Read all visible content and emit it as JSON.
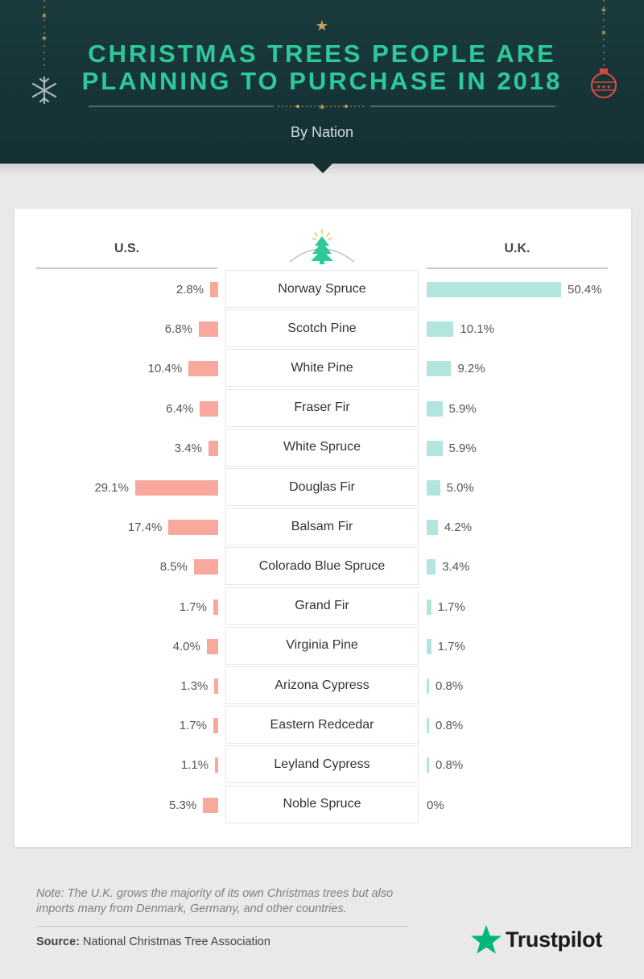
{
  "header": {
    "title_line1": "CHRISTMAS TREES PEOPLE ARE",
    "title_line2": "PLANNING TO PURCHASE IN 2018",
    "subtitle": "By Nation"
  },
  "columns": {
    "left": "U.S.",
    "right": "U.K."
  },
  "chart_data": {
    "type": "bar",
    "title": "CHRISTMAS TREES PEOPLE ARE PLANNING TO PURCHASE IN 2018",
    "subtitle": "By Nation",
    "unit": "%",
    "categories": [
      "Norway Spruce",
      "Scotch Pine",
      "White Pine",
      "Fraser Fir",
      "White Spruce",
      "Douglas Fir",
      "Balsam Fir",
      "Colorado Blue Spruce",
      "Grand Fir",
      "Virginia Pine",
      "Arizona Cypress",
      "Eastern Redcedar",
      "Leyland Cypress",
      "Noble Spruce"
    ],
    "series": [
      {
        "name": "U.S.",
        "color": "#f8a89c",
        "values": [
          2.8,
          6.8,
          10.4,
          6.4,
          3.4,
          29.1,
          17.4,
          8.5,
          1.7,
          4.0,
          1.3,
          1.7,
          1.1,
          5.3
        ],
        "labels": [
          "2.8%",
          "6.8%",
          "10.4%",
          "6.4%",
          "3.4%",
          "29.1%",
          "17.4%",
          "8.5%",
          "1.7%",
          "4.0%",
          "1.3%",
          "1.7%",
          "1.1%",
          "5.3%"
        ]
      },
      {
        "name": "U.K.",
        "color": "#b2e5de",
        "values": [
          50.4,
          10.1,
          9.2,
          5.9,
          5.9,
          5.0,
          4.2,
          3.4,
          1.7,
          1.7,
          0.8,
          0.8,
          0.8,
          0
        ],
        "labels": [
          "50.4%",
          "10.1%",
          "9.2%",
          "5.9%",
          "5.9%",
          "5.0%",
          "4.2%",
          "3.4%",
          "1.7%",
          "1.7%",
          "0.8%",
          "0.8%",
          "0.8%",
          "0%"
        ]
      }
    ]
  },
  "footer": {
    "note": "Note: The U.K. grows the majority of its own Christmas trees but also imports many from Denmark, Germany, and other countries.",
    "source_label": "Source:",
    "source_text": "National Christmas Tree Association",
    "brand": "Trustpilot"
  },
  "colors": {
    "header_bg": "#143033",
    "title": "#2ec99a",
    "us_bar": "#f8a89c",
    "uk_bar": "#b2e5de",
    "brand_star": "#00b67a"
  }
}
